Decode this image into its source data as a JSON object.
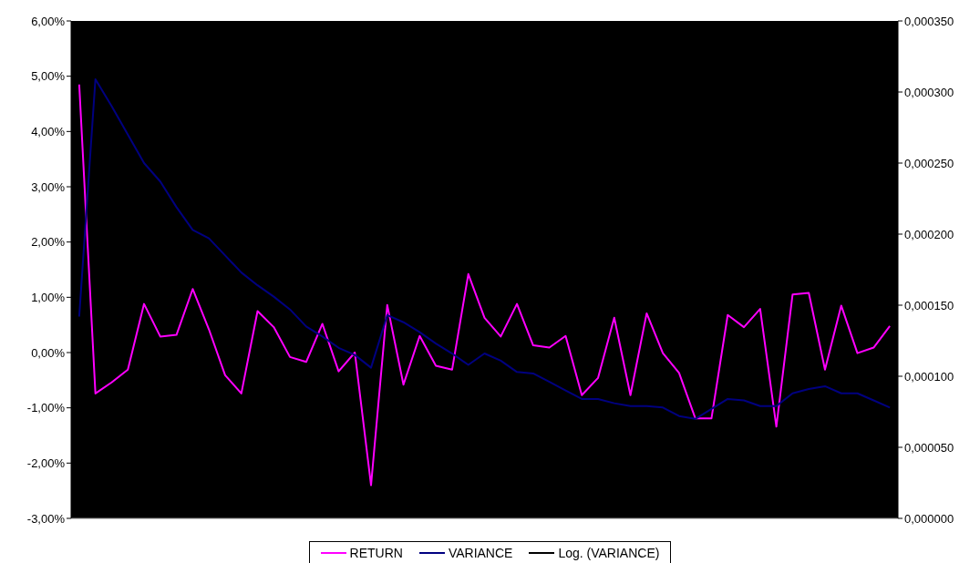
{
  "chart_data": {
    "type": "line",
    "categories": [
      null,
      null,
      null,
      null,
      null,
      null,
      null,
      null,
      null,
      null,
      null,
      null,
      null,
      null,
      null,
      null,
      null,
      null,
      null,
      null,
      null,
      null,
      null,
      null,
      null,
      null,
      null,
      null,
      null,
      null,
      null,
      null,
      null,
      null,
      null,
      null,
      null,
      null,
      null,
      null,
      null,
      null,
      null,
      null,
      null,
      null,
      null,
      null,
      null,
      null,
      null
    ],
    "series": [
      {
        "name": "RETURN",
        "color": "#ff00ff",
        "values": [
          4.85,
          -0.74,
          -0.54,
          -0.31,
          0.88,
          0.29,
          0.32,
          1.15,
          0.42,
          -0.41,
          -0.74,
          0.75,
          0.46,
          -0.08,
          -0.17,
          0.52,
          -0.34,
          0.0,
          -2.4,
          0.86,
          -0.58,
          0.3,
          -0.24,
          -0.31,
          1.42,
          0.63,
          0.29,
          0.88,
          0.13,
          0.09,
          0.3,
          -0.77,
          -0.46,
          0.63,
          -0.77,
          0.71,
          -0.01,
          -0.37,
          -1.19,
          -1.19,
          0.68,
          0.46,
          0.79,
          -1.34,
          1.05,
          1.08,
          -0.31,
          0.85,
          -0.01,
          0.09,
          0.48
        ]
      },
      {
        "name": "VARIANCE",
        "color": "#000080",
        "axis": "y2",
        "values": [
          0.000142,
          0.000309,
          0.00029,
          0.00027,
          0.00025,
          0.000237,
          0.000219,
          0.000203,
          0.000197,
          0.000185,
          0.000173,
          0.000164,
          0.000156,
          0.000147,
          0.000135,
          0.000128,
          0.00012,
          0.000115,
          0.000106,
          0.000143,
          0.000138,
          0.000131,
          0.000123,
          0.000116,
          0.000108,
          0.000116,
          0.000111,
          0.000103,
          0.000102,
          9.6e-05,
          9e-05,
          8.4e-05,
          8.4e-05,
          8.1e-05,
          7.9e-05,
          7.9e-05,
          7.8e-05,
          7.2e-05,
          7e-05,
          7.7e-05,
          8.4e-05,
          8.3e-05,
          7.9e-05,
          7.9e-05,
          8.8e-05,
          9.1e-05,
          9.3e-05,
          8.8e-05,
          8.8e-05,
          8.3e-05,
          7.8e-05
        ]
      },
      {
        "name": "Log. (VARIANCE)",
        "color": "#000000",
        "axis": "y2",
        "values": [
          null,
          null,
          null,
          null,
          null,
          null,
          null,
          null,
          null,
          null,
          null,
          null,
          null,
          null,
          null,
          null,
          null,
          null,
          null,
          null,
          null,
          null,
          null,
          null,
          null,
          null,
          null,
          null,
          null,
          null,
          null,
          null,
          null,
          null,
          null,
          null,
          null,
          null,
          null,
          null,
          null,
          null,
          null,
          null,
          null,
          null,
          null,
          null,
          null,
          null,
          null
        ]
      }
    ],
    "ylim": [
      -3,
      6
    ],
    "yticks": [
      {
        "value": -3,
        "label": "-3,00%"
      },
      {
        "value": -2,
        "label": "-2,00%"
      },
      {
        "value": -1,
        "label": "-1,00%"
      },
      {
        "value": 0,
        "label": "0,00%"
      },
      {
        "value": 1,
        "label": "1,00%"
      },
      {
        "value": 2,
        "label": "2,00%"
      },
      {
        "value": 3,
        "label": "3,00%"
      },
      {
        "value": 4,
        "label": "4,00%"
      },
      {
        "value": 5,
        "label": "5,00%"
      },
      {
        "value": 6,
        "label": "6,00%"
      }
    ],
    "y2lim": [
      0,
      0.00035
    ],
    "y2ticks": [
      {
        "value": 0,
        "label": "0,000000"
      },
      {
        "value": 5e-05,
        "label": "0,000050"
      },
      {
        "value": 0.0001,
        "label": "0,000100"
      },
      {
        "value": 0.00015,
        "label": "0,000150"
      },
      {
        "value": 0.0002,
        "label": "0,000200"
      },
      {
        "value": 0.00025,
        "label": "0,000250"
      },
      {
        "value": 0.0003,
        "label": "0,000300"
      },
      {
        "value": 0.00035,
        "label": "0,000350"
      }
    ],
    "legend": "bottom",
    "marker": "none",
    "line_style": "solid"
  }
}
